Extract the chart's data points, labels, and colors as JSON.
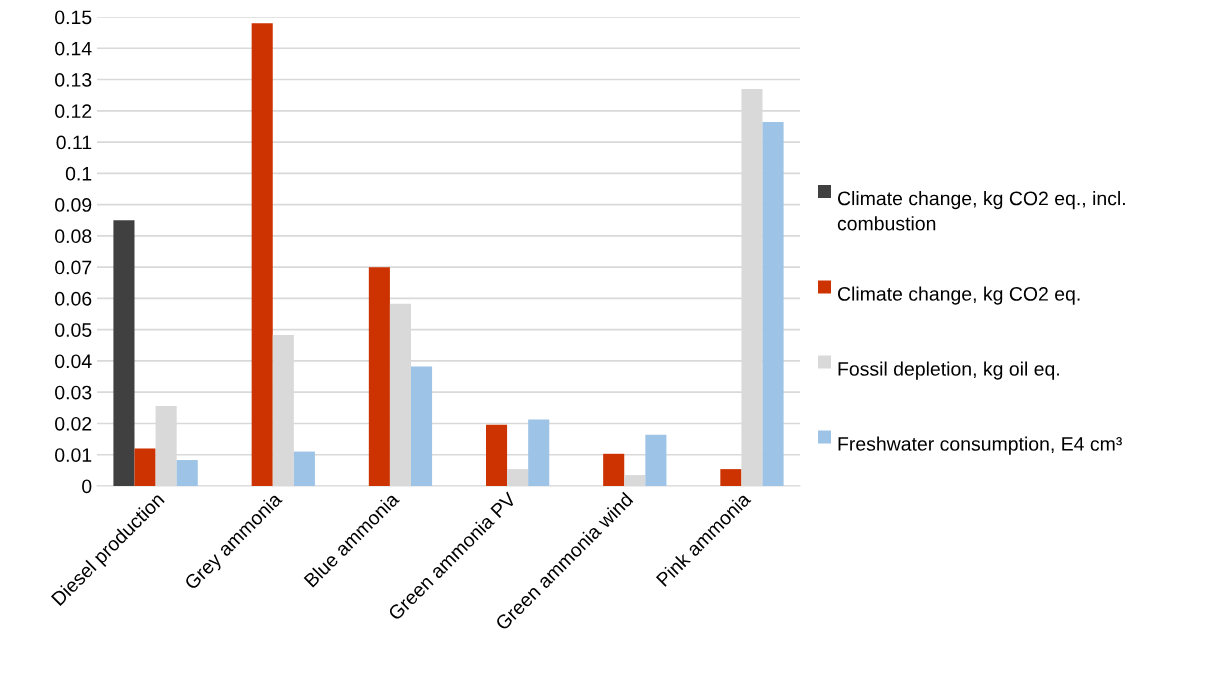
{
  "chart_data": {
    "type": "bar",
    "categories": [
      "Diesel production",
      "Grey ammonia",
      "Blue ammonia",
      "Green ammonia PV",
      "Green ammonia wind",
      "Pink ammonia"
    ],
    "series": [
      {
        "name": "Climate change, kg CO2 eq., incl. combustion",
        "color": "#404040",
        "values": [
          0.085,
          null,
          null,
          null,
          null,
          null
        ]
      },
      {
        "name": "Climate change, kg CO2 eq.",
        "color": "#cc3300",
        "values": [
          0.012,
          0.148,
          0.07,
          0.0196,
          0.0103,
          0.0054
        ]
      },
      {
        "name": "Fossil depletion, kg oil eq.",
        "color": "#d9d9d9",
        "values": [
          0.0256,
          0.0483,
          0.0583,
          0.0054,
          0.0035,
          0.127
        ]
      },
      {
        "name": "Freshwater consumption, E4 cm³",
        "color": "#9dc3e6",
        "values": [
          0.0083,
          0.011,
          0.0382,
          0.0213,
          0.0164,
          0.1164
        ]
      }
    ],
    "ylim": [
      0,
      0.15
    ],
    "yticks": [
      0,
      0.01,
      0.02,
      0.03,
      0.04,
      0.05,
      0.06,
      0.07,
      0.08,
      0.09,
      {
        "value": 0.1,
        "label": "0.1"
      },
      0.11,
      0.12,
      0.13,
      0.14,
      0.15
    ],
    "grid": "y",
    "legend": "right"
  }
}
